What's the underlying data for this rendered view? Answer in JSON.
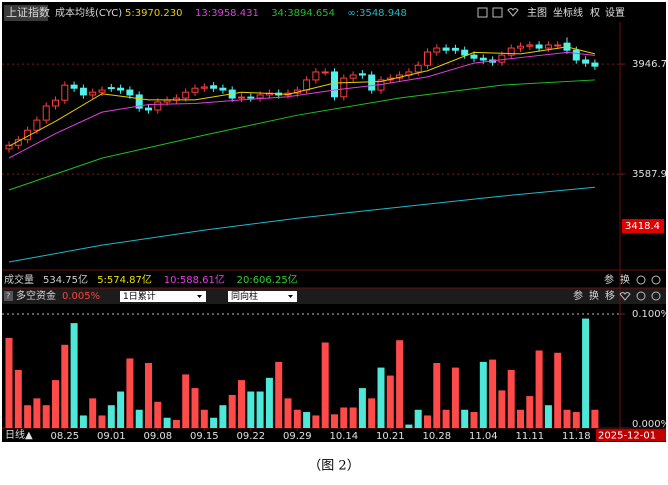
{
  "header": {
    "symbol": "上证指数",
    "indicator": "成本均线(CYC)",
    "buttons": [
      "主图",
      "坐标线",
      "权",
      "设置"
    ]
  },
  "volume_legend": [
    {
      "text": "成交量",
      "color": "#d0d0d0"
    },
    {
      "text": "534.75亿",
      "color": "#d0d0d0"
    },
    {
      "text": "5:574.87亿",
      "color": "#e8e000"
    },
    {
      "text": "10:588.61亿",
      "color": "#e040e0"
    },
    {
      "text": "20:606.25亿",
      "color": "#30d030"
    }
  ],
  "volume_tools": [
    "参",
    "换"
  ],
  "flow_header": {
    "tools": [
      "参",
      "换",
      "移"
    ],
    "dropdowns": [
      "1日累计",
      "同向柱"
    ]
  },
  "period": "日线▲",
  "caption": "（图 2）",
  "chart_data": [
    {
      "type": "candlestick",
      "up_color": "#ff3c3c",
      "down_color": "#52f2ea",
      "open": [
        3670,
        3682,
        3700,
        3731,
        3764,
        3810,
        3829,
        3878,
        3868,
        3846,
        3855,
        3870,
        3868,
        3862,
        3846,
        3803,
        3797,
        3823,
        3829,
        3836,
        3855,
        3868,
        3876,
        3868,
        3862,
        3836,
        3839,
        3836,
        3846,
        3852,
        3846,
        3852,
        3862,
        3895,
        3921,
        3921,
        3840,
        3901,
        3915,
        3911,
        3862,
        3895,
        3901,
        3911,
        3921,
        3943,
        3986,
        3999,
        3998,
        3992,
        3976,
        3966,
        3960,
        3953,
        3976,
        3999,
        4005,
        4009,
        3999,
        4009,
        4015,
        3992,
        3960,
        3950
      ],
      "high": [
        3694,
        3712,
        3743,
        3776,
        3822,
        3841,
        3890,
        3890,
        3880,
        3867,
        3874,
        3882,
        3880,
        3874,
        3858,
        3815,
        3835,
        3841,
        3848,
        3867,
        3880,
        3884,
        3888,
        3880,
        3874,
        3851,
        3851,
        3858,
        3864,
        3864,
        3864,
        3874,
        3907,
        3933,
        3933,
        3933,
        3913,
        3923,
        3927,
        3923,
        3907,
        3913,
        3923,
        3933,
        3955,
        3998,
        4011,
        4011,
        4010,
        4004,
        3988,
        3978,
        3972,
        3988,
        4011,
        4017,
        4021,
        4021,
        4021,
        4021,
        4034,
        4004,
        3972,
        3962
      ],
      "low": [
        3658,
        3670,
        3688,
        3719,
        3752,
        3798,
        3817,
        3856,
        3834,
        3834,
        3843,
        3856,
        3850,
        3834,
        3791,
        3785,
        3785,
        3811,
        3817,
        3824,
        3843,
        3856,
        3856,
        3850,
        3824,
        3824,
        3824,
        3824,
        3834,
        3834,
        3834,
        3840,
        3850,
        3883,
        3909,
        3828,
        3828,
        3889,
        3899,
        3850,
        3850,
        3883,
        3889,
        3899,
        3909,
        3931,
        3974,
        3980,
        3980,
        3964,
        3954,
        3948,
        3941,
        3941,
        3964,
        3987,
        3993,
        3987,
        3987,
        3997,
        3980,
        3948,
        3938,
        3928
      ],
      "close": [
        3682,
        3700,
        3731,
        3764,
        3810,
        3829,
        3878,
        3868,
        3846,
        3855,
        3862,
        3868,
        3862,
        3846,
        3803,
        3797,
        3823,
        3829,
        3836,
        3855,
        3868,
        3872,
        3868,
        3862,
        3836,
        3839,
        3836,
        3846,
        3852,
        3846,
        3852,
        3862,
        3895,
        3921,
        3921,
        3840,
        3901,
        3911,
        3911,
        3862,
        3895,
        3901,
        3911,
        3921,
        3943,
        3986,
        3999,
        3992,
        3992,
        3976,
        3966,
        3960,
        3953,
        3976,
        3999,
        4005,
        4009,
        3999,
        4009,
        4009,
        3992,
        3960,
        3950,
        3940
      ],
      "series": [
        {
          "name": "5:3970.230",
          "color": "#e8d000",
          "x": [
            0,
            5,
            10,
            15,
            20,
            25,
            30,
            35,
            40,
            45,
            50,
            55,
            60,
            63
          ],
          "values": [
            3679,
            3760,
            3850,
            3830,
            3830,
            3855,
            3848,
            3885,
            3890,
            3925,
            3985,
            3980,
            4003,
            3980
          ]
        },
        {
          "name": "13:3958.431",
          "color": "#e040e0",
          "x": [
            0,
            5,
            10,
            15,
            20,
            25,
            30,
            35,
            40,
            45,
            50,
            55,
            60,
            63
          ],
          "values": [
            3640,
            3720,
            3790,
            3815,
            3818,
            3830,
            3840,
            3862,
            3880,
            3905,
            3950,
            3968,
            3985,
            3975
          ]
        },
        {
          "name": "34:3894.654",
          "color": "#20c020",
          "x": [
            0,
            10,
            21,
            31,
            42,
            53,
            63
          ],
          "values": [
            3536,
            3640,
            3715,
            3780,
            3836,
            3878,
            3895
          ]
        },
        {
          "name": "∞:3548.948",
          "color": "#20b8c8",
          "x": [
            0,
            10,
            21,
            31,
            42,
            53,
            63
          ],
          "values": [
            3301,
            3356,
            3405,
            3444,
            3480,
            3516,
            3545
          ]
        }
      ],
      "ylim": [
        3275,
        4084
      ],
      "yticks": [
        3946.7,
        3587.9
      ],
      "price_marker": 3418.4,
      "grid": true,
      "xticks": [
        {
          "value": 6,
          "label": "08.25"
        },
        {
          "value": 11,
          "label": "09.01"
        },
        {
          "value": 16,
          "label": "09.08"
        },
        {
          "value": 21,
          "label": "09.15"
        },
        {
          "value": 26,
          "label": "09.22"
        },
        {
          "value": 31,
          "label": "09.29"
        },
        {
          "value": 36,
          "label": "10.14"
        },
        {
          "value": 41,
          "label": "10.21"
        },
        {
          "value": 46,
          "label": "10.28"
        },
        {
          "value": 51,
          "label": "11.04"
        },
        {
          "value": 56,
          "label": "11.11"
        },
        {
          "value": 61,
          "label": "11.18"
        }
      ],
      "current_date": "2025-12-01"
    },
    {
      "type": "bar",
      "title": "多空资金",
      "subtitle": "0.005%",
      "values": [
        0.079,
        0.051,
        0.02,
        0.026,
        0.02,
        0.042,
        0.073,
        0.092,
        0.011,
        0.026,
        0.011,
        0.02,
        0.032,
        0.061,
        0.016,
        0.057,
        0.023,
        0.009,
        0.007,
        0.047,
        0.035,
        0.016,
        0.009,
        0.02,
        0.029,
        0.042,
        0.032,
        0.032,
        0.044,
        0.058,
        0.026,
        0.016,
        0.014,
        0.011,
        0.075,
        0.012,
        0.018,
        0.018,
        0.035,
        0.026,
        0.053,
        0.046,
        0.077,
        0.003,
        0.016,
        0.011,
        0.057,
        0.016,
        0.053,
        0.016,
        0.014,
        0.058,
        0.06,
        0.033,
        0.051,
        0.016,
        0.028,
        0.068,
        0.02,
        0.066,
        0.016,
        0.014,
        0.096,
        0.016
      ],
      "colors": [
        "#ff4a4a",
        "#ff4a4a",
        "#ff4a4a",
        "#ff4a4a",
        "#ff4a4a",
        "#ff4a4a",
        "#ff4a4a",
        "#4de8d8",
        "#4de8d8",
        "#ff4a4a",
        "#ff4a4a",
        "#4de8d8",
        "#4de8d8",
        "#ff4a4a",
        "#4de8d8",
        "#ff4a4a",
        "#ff4a4a",
        "#4de8d8",
        "#ff4a4a",
        "#ff4a4a",
        "#ff4a4a",
        "#ff4a4a",
        "#4de8d8",
        "#4de8d8",
        "#ff4a4a",
        "#ff4a4a",
        "#4de8d8",
        "#4de8d8",
        "#4de8d8",
        "#ff4a4a",
        "#ff4a4a",
        "#ff4a4a",
        "#4de8d8",
        "#ff4a4a",
        "#ff4a4a",
        "#ff4a4a",
        "#ff4a4a",
        "#ff4a4a",
        "#4de8d8",
        "#ff4a4a",
        "#4de8d8",
        "#ff4a4a",
        "#ff4a4a",
        "#4de8d8",
        "#4de8d8",
        "#ff4a4a",
        "#ff4a4a",
        "#ff4a4a",
        "#ff4a4a",
        "#4de8d8",
        "#ff4a4a",
        "#4de8d8",
        "#ff4a4a",
        "#ff4a4a",
        "#ff4a4a",
        "#ff4a4a",
        "#ff4a4a",
        "#ff4a4a",
        "#4de8d8",
        "#ff4a4a",
        "#ff4a4a",
        "#ff4a4a",
        "#4de8d8",
        "#ff4a4a"
      ],
      "ylim": [
        0,
        0.1
      ],
      "yticks": [
        {
          "value": 0.1,
          "label": "0.100%"
        },
        {
          "value": 0,
          "label": "0.000%"
        }
      ],
      "grid": true
    }
  ]
}
